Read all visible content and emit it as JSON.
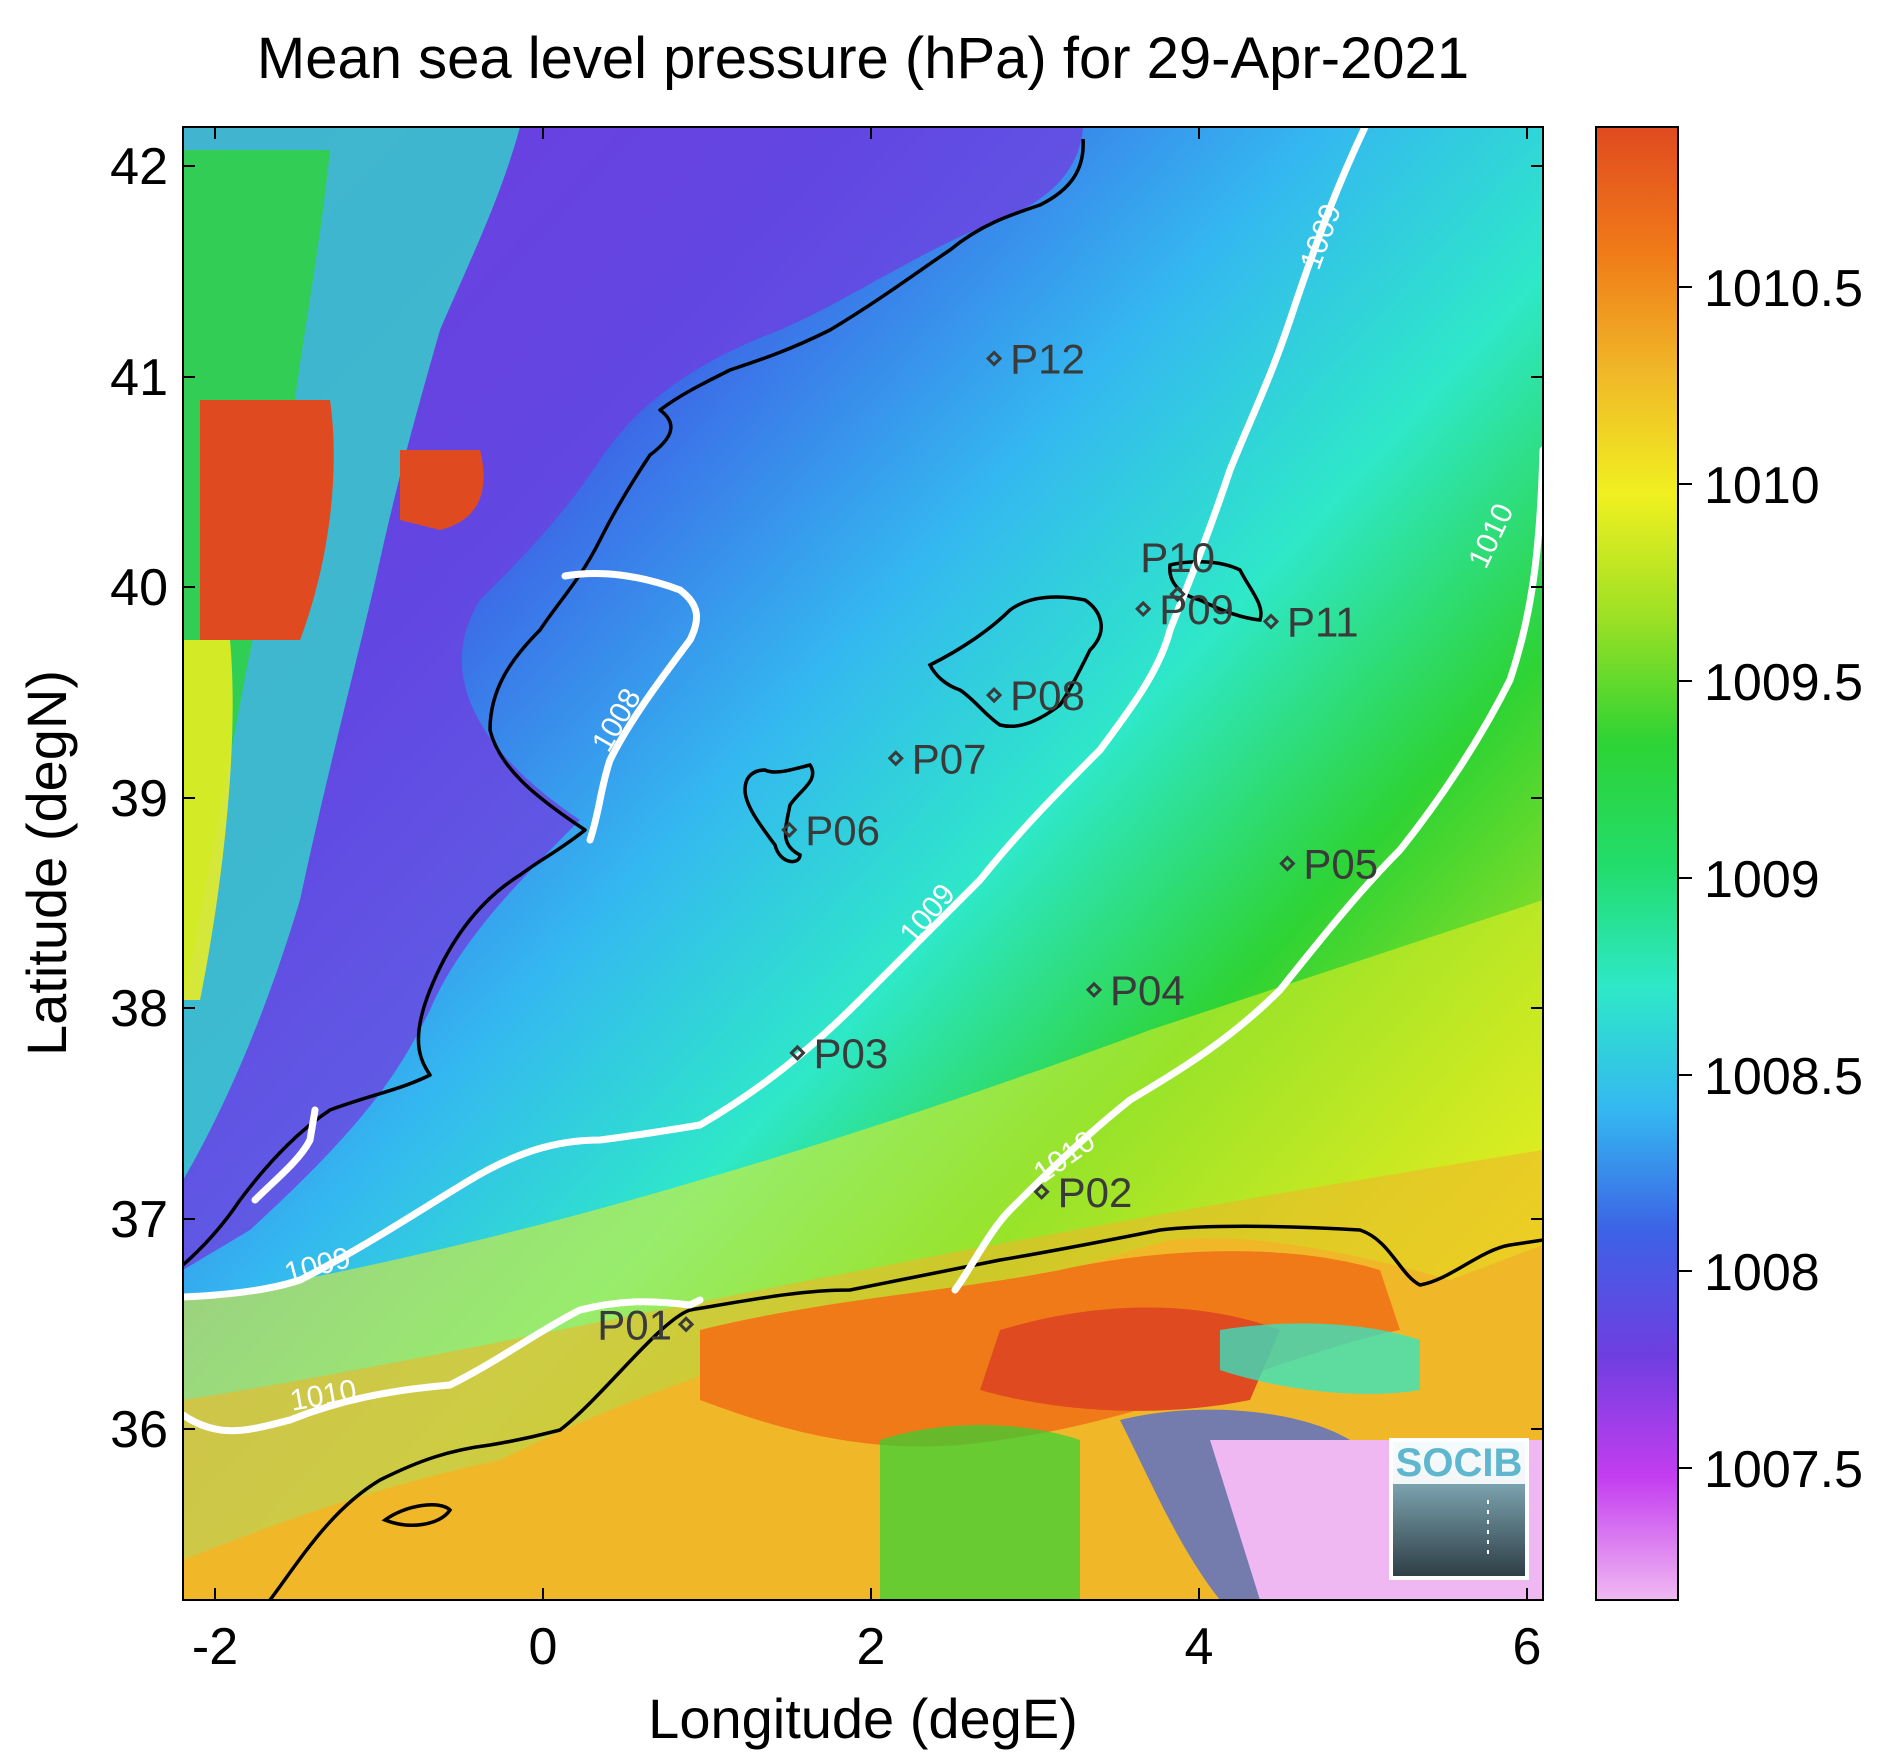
{
  "title": "Mean sea level pressure (hPa) for 29-Apr-2021",
  "xlabel": "Longitude (degE)",
  "ylabel": "Latitude (degN)",
  "x_ticks": [
    "-2",
    "0",
    "2",
    "4",
    "6"
  ],
  "y_ticks": [
    "36",
    "37",
    "38",
    "39",
    "40",
    "41",
    "42"
  ],
  "x_range": [
    -2.25,
    6.05
  ],
  "y_range": [
    35.2,
    42.2
  ],
  "colorbar": {
    "ticks": [
      "1007.5",
      "1008",
      "1008.5",
      "1009",
      "1009.5",
      "1010",
      "1010.5"
    ],
    "range": [
      1007.15,
      1010.9
    ],
    "colors": [
      "#f0b8f2",
      "#c43ef0",
      "#6f3ee0",
      "#3d62e6",
      "#34b8f0",
      "#2ee8c8",
      "#22dc6a",
      "#2ed334",
      "#9be024",
      "#f0f020",
      "#f0b828",
      "#f07a18",
      "#e04a20"
    ]
  },
  "contours": [
    {
      "level": "1008",
      "label": "1008"
    },
    {
      "level": "1009",
      "label": "1009"
    },
    {
      "level": "1010",
      "label": "1010"
    }
  ],
  "stations": [
    {
      "id": "P01",
      "lon": 0.82,
      "lat": 36.51
    },
    {
      "id": "P02",
      "lon": 2.99,
      "lat": 37.14
    },
    {
      "id": "P03",
      "lon": 1.5,
      "lat": 37.8
    },
    {
      "id": "P04",
      "lon": 3.31,
      "lat": 38.1
    },
    {
      "id": "P05",
      "lon": 4.49,
      "lat": 38.7
    },
    {
      "id": "P06",
      "lon": 1.45,
      "lat": 38.86
    },
    {
      "id": "P07",
      "lon": 2.1,
      "lat": 39.2
    },
    {
      "id": "P08",
      "lon": 2.7,
      "lat": 39.5
    },
    {
      "id": "P09",
      "lon": 3.61,
      "lat": 39.91
    },
    {
      "id": "P10",
      "lon": 3.82,
      "lat": 39.98
    },
    {
      "id": "P11",
      "lon": 4.39,
      "lat": 39.85
    },
    {
      "id": "P12",
      "lon": 2.7,
      "lat": 41.1
    }
  ],
  "logo": {
    "text": "SOCIB"
  }
}
